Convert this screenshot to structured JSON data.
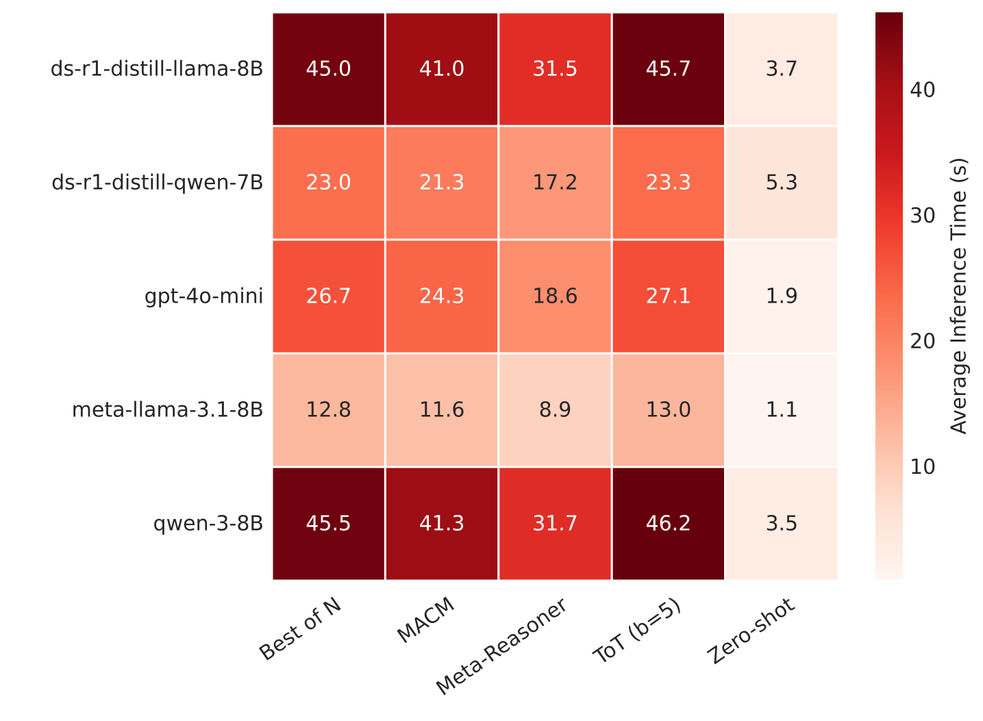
{
  "chart_data": {
    "type": "heatmap",
    "title": "",
    "xlabel": "",
    "ylabel": "",
    "rows": [
      "ds-r1-distill-llama-8B",
      "ds-r1-distill-qwen-7B",
      "gpt-4o-mini",
      "meta-llama-3.1-8B",
      "qwen-3-8B"
    ],
    "columns": [
      "Best of N",
      "MACM",
      "Meta-Reasoner",
      "ToT (b=5)",
      "Zero-shot"
    ],
    "values": [
      [
        45.0,
        41.0,
        31.5,
        45.7,
        3.7
      ],
      [
        23.0,
        21.3,
        17.2,
        23.3,
        5.3
      ],
      [
        26.7,
        24.3,
        18.6,
        27.1,
        1.9
      ],
      [
        12.8,
        11.6,
        8.9,
        13.0,
        1.1
      ],
      [
        45.5,
        41.3,
        31.7,
        46.2,
        3.5
      ]
    ],
    "value_format": "0.0",
    "colormap": "Reds",
    "colorbar": {
      "label": "Average Inference Time (s)",
      "vmin": 1.1,
      "vmax": 46.2,
      "ticks": [
        10,
        20,
        30,
        40
      ]
    },
    "grid_lines": "white",
    "annotation_colors": {
      "dark_text": "#262626",
      "light_text": "#ffffff"
    }
  }
}
